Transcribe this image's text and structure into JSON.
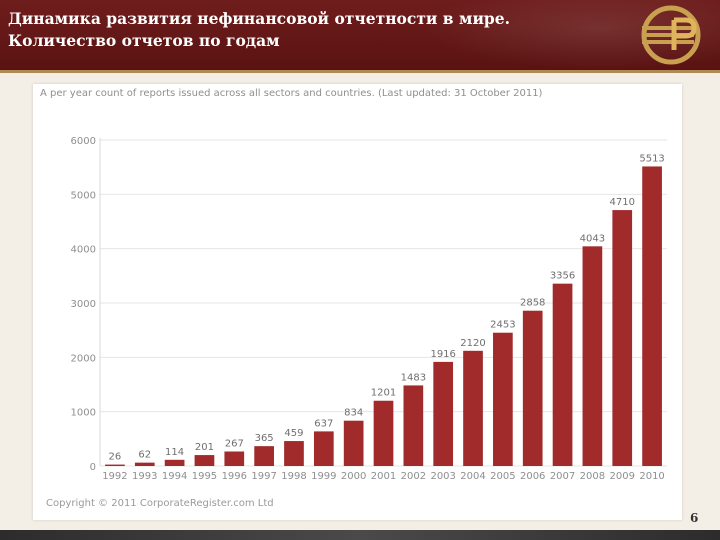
{
  "slide": {
    "title_line1": "Динамика развития нефинансовой отчетности в мире.",
    "title_line2": "Количество отчетов по годам",
    "page_number": "6",
    "logo_icon": "company-logo-icon"
  },
  "chart_data": {
    "type": "bar",
    "title": "A per year count of reports issued across all sectors and countries. (Last updated: 31 October 2011)",
    "source": "Copyright © 2011 CorporateRegister.com Ltd",
    "categories": [
      "1992",
      "1993",
      "1994",
      "1995",
      "1996",
      "1997",
      "1998",
      "1999",
      "2000",
      "2001",
      "2002",
      "2003",
      "2004",
      "2005",
      "2006",
      "2007",
      "2008",
      "2009",
      "2010"
    ],
    "values": [
      26,
      62,
      114,
      201,
      267,
      365,
      459,
      637,
      834,
      1201,
      1483,
      1916,
      2120,
      2453,
      2858,
      3356,
      4043,
      4710,
      5513
    ],
    "yticks": [
      "0",
      "1000",
      "2000",
      "3000",
      "4000",
      "5000",
      "6000"
    ],
    "ylim": [
      0,
      6000
    ],
    "xlabel": "",
    "ylabel": "",
    "grid": true,
    "bar_color": "#a12a2b"
  }
}
